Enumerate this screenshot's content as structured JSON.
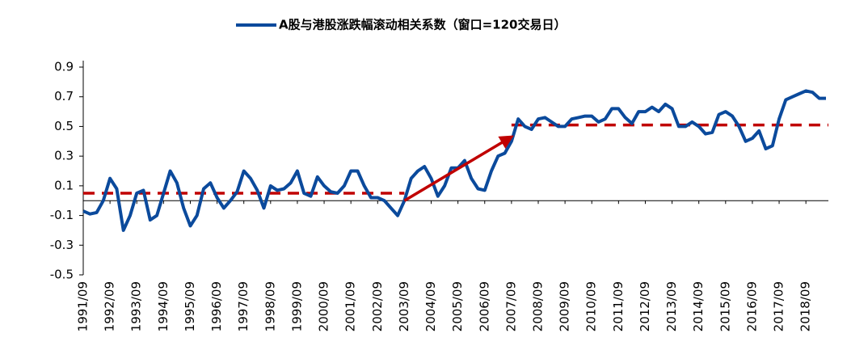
{
  "chart_data": {
    "type": "line",
    "categories": [
      "1991/09",
      null,
      null,
      null,
      "1992/09",
      null,
      null,
      null,
      "1993/09",
      null,
      null,
      null,
      "1994/09",
      null,
      null,
      null,
      "1995/09",
      null,
      null,
      null,
      "1996/09",
      null,
      null,
      null,
      "1997/09",
      null,
      null,
      null,
      "1998/09",
      null,
      null,
      null,
      "1999/09",
      null,
      null,
      null,
      "2000/09",
      null,
      null,
      null,
      "2001/09",
      null,
      null,
      null,
      "2002/09",
      null,
      null,
      null,
      "2003/09",
      null,
      null,
      null,
      "2004/09",
      null,
      null,
      null,
      "2005/09",
      null,
      null,
      null,
      "2006/09",
      null,
      null,
      null,
      "2007/09",
      null,
      null,
      null,
      "2008/09",
      null,
      null,
      null,
      "2009/09",
      null,
      null,
      null,
      "2010/09",
      null,
      null,
      null,
      "2011/09",
      null,
      null,
      null,
      "2012/09",
      null,
      null,
      null,
      "2013/09",
      null,
      null,
      null,
      "2014/09",
      null,
      null,
      null,
      "2015/09",
      null,
      null,
      null,
      "2016/09",
      null,
      null,
      null,
      "2017/09",
      null,
      null,
      null,
      "2018/09",
      null,
      null,
      null
    ],
    "series": [
      {
        "name": "A股与港股涨跌幅滚动相关系数（窗口=120交易日）",
        "color": "#0b4a9c",
        "values": [
          -0.07,
          -0.09,
          -0.08,
          0.0,
          0.15,
          0.08,
          -0.2,
          -0.1,
          0.05,
          0.07,
          -0.13,
          -0.1,
          0.05,
          0.2,
          0.12,
          -0.05,
          -0.17,
          -0.1,
          0.08,
          0.12,
          0.02,
          -0.05,
          0.0,
          0.06,
          0.2,
          0.15,
          0.07,
          -0.05,
          0.1,
          0.07,
          0.08,
          0.12,
          0.2,
          0.05,
          0.03,
          0.16,
          0.1,
          0.06,
          0.05,
          0.1,
          0.2,
          0.2,
          0.1,
          0.02,
          0.02,
          0.0,
          -0.05,
          -0.1,
          0.0,
          0.15,
          0.2,
          0.23,
          0.15,
          0.03,
          0.1,
          0.22,
          0.22,
          0.27,
          0.15,
          0.08,
          0.07,
          0.2,
          0.3,
          0.32,
          0.4,
          0.55,
          0.5,
          0.48,
          0.55,
          0.56,
          0.53,
          0.5,
          0.5,
          0.55,
          0.56,
          0.57,
          0.57,
          0.53,
          0.55,
          0.62,
          0.62,
          0.56,
          0.52,
          0.6,
          0.6,
          0.63,
          0.6,
          0.65,
          0.62,
          0.5,
          0.5,
          0.53,
          0.5,
          0.45,
          0.46,
          0.58,
          0.6,
          0.57,
          0.5,
          0.4,
          0.42,
          0.47,
          0.35,
          0.37,
          0.55,
          0.68,
          0.7,
          0.72,
          0.74,
          0.73,
          0.69,
          0.69
        ]
      }
    ],
    "ylim": [
      -0.5,
      0.9
    ],
    "yticks": [
      -0.5,
      -0.3,
      -0.1,
      0.1,
      0.3,
      0.5,
      0.7,
      0.9
    ],
    "reference_lines": [
      {
        "value": 0.05,
        "from": "1991/09",
        "to": "2003/09",
        "color": "#c00000"
      },
      {
        "value": 0.51,
        "from": "2007/09",
        "color": "#c00000"
      }
    ],
    "arrow": {
      "from": [
        "2003/09",
        0.0
      ],
      "to": [
        "2007/09",
        0.43
      ],
      "color": "#c00000"
    },
    "legend": "top"
  }
}
